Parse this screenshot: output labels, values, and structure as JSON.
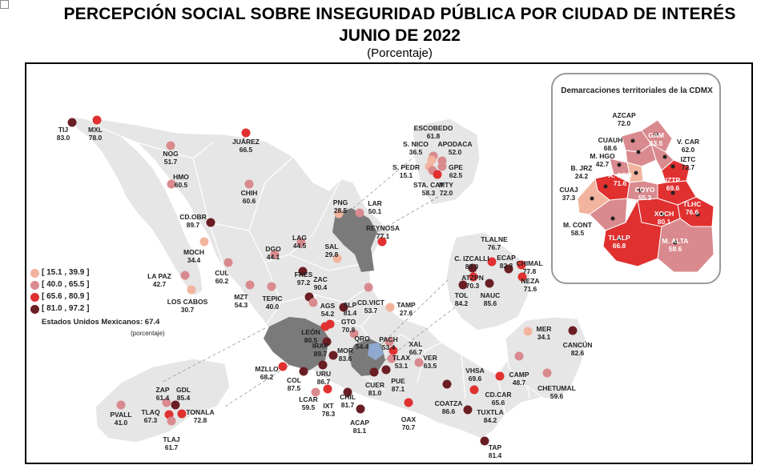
{
  "title": "PERCEPCIÓN SOCIAL SOBRE INSEGURIDAD PÚBLICA POR CIUDAD DE INTERÉS",
  "subtitle": "JUNIO DE 2022",
  "unit": "(Porcentaje)",
  "colors": {
    "c1": "#f2b49e",
    "c2": "#d98a8e",
    "c3": "#e03030",
    "c4": "#6a1e24",
    "land": "#e6e6e6",
    "border": "#ffffff",
    "gray_region": "#7a7a7a",
    "blue_region": "#8fa8d0"
  },
  "legend": [
    {
      "label": "[ 15.1 , 39.9 ]",
      "color": "#f2b49e"
    },
    {
      "label": "[ 40.0 , 65.5 ]",
      "color": "#d98a8e"
    },
    {
      "label": "[ 65.6 , 80.9 ]",
      "color": "#e03030"
    },
    {
      "label": "[ 81.0 , 97.2 ]",
      "color": "#6a1e24"
    }
  ],
  "national": {
    "label": "Estados Unidos Mexicanos: 67.4",
    "sub": "(porcentaje)"
  },
  "cdmx_title": "Demarcaciones territoriales de la CDMX",
  "cities": [
    {
      "name": "TIJ",
      "value": "83.0"
    },
    {
      "name": "MXL",
      "value": "78.0"
    },
    {
      "name": "NOG",
      "value": "51.7"
    },
    {
      "name": "JUÁREZ",
      "value": "66.5"
    },
    {
      "name": "HMO",
      "value": "60.5"
    },
    {
      "name": "CHIH",
      "value": "60.6"
    },
    {
      "name": "CD.OBR",
      "value": "89.7"
    },
    {
      "name": "MOCH",
      "value": "34.4"
    },
    {
      "name": "LA PAZ",
      "value": "42.7"
    },
    {
      "name": "LOS CABOS",
      "value": "30.7"
    },
    {
      "name": "CUL",
      "value": "60.2"
    },
    {
      "name": "MZT",
      "value": "54.3"
    },
    {
      "name": "DGO",
      "value": "44.1"
    },
    {
      "name": "LAG",
      "value": "44.5"
    },
    {
      "name": "TEPIC",
      "value": "40.0"
    },
    {
      "name": "FRES",
      "value": "97.2"
    },
    {
      "name": "ZAC",
      "value": "90.4"
    },
    {
      "name": "AGS",
      "value": "54.2"
    },
    {
      "name": "SAL",
      "value": "29.8"
    },
    {
      "name": "PNG",
      "value": "28.5"
    },
    {
      "name": "LAR",
      "value": "50.1"
    },
    {
      "name": "REYNOSA",
      "value": "77.1"
    },
    {
      "name": "ESCOBEDO",
      "value": "61.8"
    },
    {
      "name": "S. NICO",
      "value": "36.5"
    },
    {
      "name": "APODACA",
      "value": "52.0"
    },
    {
      "name": "S. PEDR",
      "value": "15.1"
    },
    {
      "name": "GPE",
      "value": "62.5"
    },
    {
      "name": "STA. CAT",
      "value": "58.3"
    },
    {
      "name": "MTY",
      "value": "72.0"
    },
    {
      "name": "SLP",
      "value": "81.4"
    },
    {
      "name": "CD.VICT",
      "value": "53.7"
    },
    {
      "name": "TAMP",
      "value": "27.6"
    },
    {
      "name": "LEÓN",
      "value": "80.5"
    },
    {
      "name": "GTO",
      "value": "70.8"
    },
    {
      "name": "IRAP",
      "value": "89.7"
    },
    {
      "name": "QRO",
      "value": "54.4"
    },
    {
      "name": "MOR",
      "value": "83.6"
    },
    {
      "name": "URU",
      "value": "86.7"
    },
    {
      "name": "PACH",
      "value": "53.4"
    },
    {
      "name": "XAL",
      "value": "66.7"
    },
    {
      "name": "TLAX",
      "value": "53.1"
    },
    {
      "name": "VER",
      "value": "63.5"
    },
    {
      "name": "PUE",
      "value": "87.1"
    },
    {
      "name": "CUER",
      "value": "81.0"
    },
    {
      "name": "MZLLO",
      "value": "68.2"
    },
    {
      "name": "COL",
      "value": "87.5"
    },
    {
      "name": "LCAR",
      "value": "59.5"
    },
    {
      "name": "IXT",
      "value": "78.3"
    },
    {
      "name": "CHIL",
      "value": "81.7"
    },
    {
      "name": "ACAP",
      "value": "81.1"
    },
    {
      "name": "OAX",
      "value": "70.7"
    },
    {
      "name": "COATZA",
      "value": "86.6"
    },
    {
      "name": "VHSA",
      "value": "69.6"
    },
    {
      "name": "CD.CAR",
      "value": "65.6"
    },
    {
      "name": "TUXTLA",
      "value": "84.2"
    },
    {
      "name": "TAP",
      "value": "81.4"
    },
    {
      "name": "CAMP",
      "value": "48.7"
    },
    {
      "name": "MER",
      "value": "34.1"
    },
    {
      "name": "CANCÚN",
      "value": "82.6"
    },
    {
      "name": "CHETUMAL",
      "value": "59.6"
    },
    {
      "name": "ZAP",
      "value": "61.4"
    },
    {
      "name": "GDL",
      "value": "85.4"
    },
    {
      "name": "PVALL",
      "value": "41.0"
    },
    {
      "name": "TLAQ",
      "value": "67.3"
    },
    {
      "name": "TONALA",
      "value": "72.8"
    },
    {
      "name": "TLAJ",
      "value": "61.7"
    },
    {
      "name": "TLALNE",
      "value": "76.7"
    },
    {
      "name": "C. IZCALLI",
      "value": "89.0"
    },
    {
      "name": "ECAP",
      "value": "82.3"
    },
    {
      "name": "ATZPN",
      "value": "70.3"
    },
    {
      "name": "CHIMAL",
      "value": "77.8"
    },
    {
      "name": "NEZA",
      "value": "71.6"
    },
    {
      "name": "TOL",
      "value": "84.2"
    },
    {
      "name": "NAUC",
      "value": "85.6"
    }
  ],
  "cdmx": [
    {
      "name": "AZCAP",
      "value": "72.0"
    },
    {
      "name": "CUAUH",
      "value": "68.6"
    },
    {
      "name": "GAM",
      "value": "63.5"
    },
    {
      "name": "V. CAR",
      "value": "62.0"
    },
    {
      "name": "M. HGO",
      "value": "42.7"
    },
    {
      "name": "IZTC",
      "value": "72.7"
    },
    {
      "name": "B. JRZ",
      "value": "24.2"
    },
    {
      "name": "A. OBR",
      "value": "71.6"
    },
    {
      "name": "IZTP",
      "value": "69.6"
    },
    {
      "name": "CUAJ",
      "value": "37.3"
    },
    {
      "name": "COYO",
      "value": "55.3"
    },
    {
      "name": "TLHC",
      "value": "76.6"
    },
    {
      "name": "XOCH",
      "value": "80.1"
    },
    {
      "name": "M. CONT",
      "value": "58.5"
    },
    {
      "name": "TLALP",
      "value": "66.8"
    },
    {
      "name": "M. ALTA",
      "value": "58.6"
    }
  ]
}
